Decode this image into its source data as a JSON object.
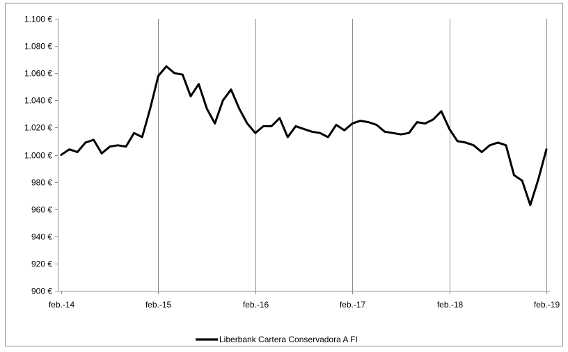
{
  "chart_data": {
    "type": "line",
    "title": "",
    "xlabel": "",
    "ylabel": "",
    "x_tick_labels": [
      "feb.-14",
      "feb.-15",
      "feb.-16",
      "feb.-17",
      "feb.-18",
      "feb.-19"
    ],
    "y_tick_labels": [
      "900 €",
      "920 €",
      "940 €",
      "960 €",
      "980 €",
      "1.000 €",
      "1.020 €",
      "1.040 €",
      "1.060 €",
      "1.080 €",
      "1.100 €"
    ],
    "ylim": [
      900,
      1100
    ],
    "grid": "vertical",
    "legend_position": "bottom",
    "series": [
      {
        "name": "Liberbank Cartera Conservadora A FI",
        "color": "#000000",
        "x": [
          "2014-02",
          "2014-03",
          "2014-04",
          "2014-05",
          "2014-06",
          "2014-07",
          "2014-08",
          "2014-09",
          "2014-10",
          "2014-11",
          "2014-12",
          "2015-01",
          "2015-02",
          "2015-03",
          "2015-04",
          "2015-05",
          "2015-06",
          "2015-07",
          "2015-08",
          "2015-09",
          "2015-10",
          "2015-11",
          "2015-12",
          "2016-01",
          "2016-02",
          "2016-03",
          "2016-04",
          "2016-05",
          "2016-06",
          "2016-07",
          "2016-08",
          "2016-09",
          "2016-10",
          "2016-11",
          "2016-12",
          "2017-01",
          "2017-02",
          "2017-03",
          "2017-04",
          "2017-05",
          "2017-06",
          "2017-07",
          "2017-08",
          "2017-09",
          "2017-10",
          "2017-11",
          "2017-12",
          "2018-01",
          "2018-02",
          "2018-03",
          "2018-04",
          "2018-05",
          "2018-06",
          "2018-07",
          "2018-08",
          "2018-09",
          "2018-10",
          "2018-11",
          "2018-12",
          "2019-01",
          "2019-02"
        ],
        "values": [
          1000,
          1004,
          1002,
          1009,
          1011,
          1001,
          1006,
          1007,
          1006,
          1016,
          1013,
          1034,
          1058,
          1065,
          1060,
          1059,
          1043,
          1052,
          1034,
          1023,
          1040,
          1048,
          1034,
          1023,
          1016,
          1021,
          1021,
          1027,
          1013,
          1021,
          1019,
          1017,
          1016,
          1013,
          1022,
          1018,
          1023,
          1025,
          1024,
          1022,
          1017,
          1016,
          1015,
          1016,
          1024,
          1023,
          1026,
          1032,
          1019,
          1010,
          1009,
          1007,
          1002,
          1007,
          1009,
          1007,
          985,
          981,
          963,
          982,
          1004
        ]
      }
    ]
  }
}
